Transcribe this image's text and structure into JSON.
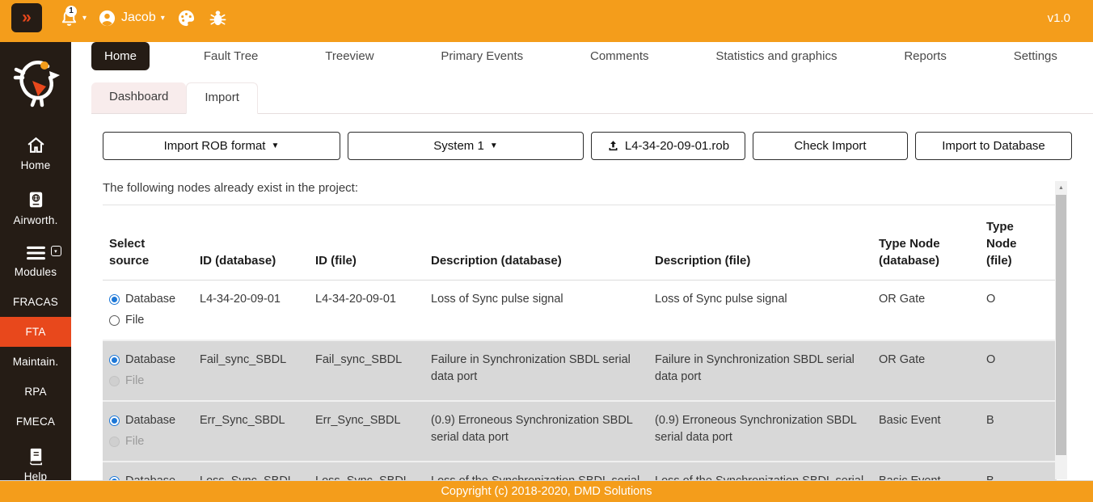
{
  "topbar": {
    "collapse_glyph": "»",
    "notification_count": "1",
    "user_name": "Jacob",
    "version": "v1.0"
  },
  "sidebar": {
    "items": [
      {
        "id": "home",
        "label": "Home",
        "icon": "home"
      },
      {
        "id": "airworthiness",
        "label": "Airworth.",
        "icon": "airworth"
      },
      {
        "id": "modules",
        "label": "Modules",
        "icon": "modules",
        "extra_icon": "dropdown"
      },
      {
        "id": "fracas",
        "label": "FRACAS"
      },
      {
        "id": "fta",
        "label": "FTA",
        "active": true
      },
      {
        "id": "maintain",
        "label": "Maintain."
      },
      {
        "id": "rpa",
        "label": "RPA"
      },
      {
        "id": "fmeca",
        "label": "FMECA"
      },
      {
        "id": "help",
        "label": "Help",
        "icon": "help"
      }
    ]
  },
  "main_tabs": [
    {
      "id": "home",
      "label": "Home",
      "active": true
    },
    {
      "id": "fault-tree",
      "label": "Fault Tree"
    },
    {
      "id": "treeview",
      "label": "Treeview"
    },
    {
      "id": "primary-events",
      "label": "Primary Events"
    },
    {
      "id": "comments",
      "label": "Comments"
    },
    {
      "id": "statistics-and-graphics",
      "label": "Statistics and graphics"
    },
    {
      "id": "reports",
      "label": "Reports"
    },
    {
      "id": "settings",
      "label": "Settings"
    }
  ],
  "sub_tabs": [
    {
      "id": "dashboard",
      "label": "Dashboard",
      "tinted": true
    },
    {
      "id": "import",
      "label": "Import",
      "active": true
    }
  ],
  "toolbar": {
    "import_format": "Import ROB format",
    "system": "System 1",
    "file_name": "L4-34-20-09-01.rob",
    "check_import": "Check Import",
    "import_to_database": "Import to Database"
  },
  "main": {
    "message": "The following nodes already exist in the project:"
  },
  "table": {
    "radio_options": [
      "Database",
      "File"
    ],
    "headers": [
      "Select source",
      "ID (database)",
      "ID (file)",
      "Description (database)",
      "Description (file)",
      "Type Node (database)",
      "Type Node (file)"
    ],
    "rows": [
      {
        "selected": "Database",
        "file_disabled": false,
        "shaded": false,
        "id_database": "L4-34-20-09-01",
        "id_file": "L4-34-20-09-01",
        "description_database": "Loss of Sync pulse signal",
        "description_file": "Loss of Sync pulse signal",
        "type_node_database": "OR Gate",
        "type_node_file": "O"
      },
      {
        "selected": "Database",
        "file_disabled": true,
        "shaded": true,
        "id_database": "Fail_sync_SBDL",
        "id_file": "Fail_sync_SBDL",
        "description_database": "Failure in Synchronization SBDL serial data port",
        "description_file": "Failure in Synchronization SBDL serial data port",
        "type_node_database": "OR Gate",
        "type_node_file": "O"
      },
      {
        "selected": "Database",
        "file_disabled": true,
        "shaded": true,
        "id_database": "Err_Sync_SBDL",
        "id_file": "Err_Sync_SBDL",
        "description_database": "(0.9) Erroneous Synchronization SBDL serial data port",
        "description_file": "(0.9) Erroneous Synchronization SBDL serial data port",
        "type_node_database": "Basic Event",
        "type_node_file": "B"
      },
      {
        "selected": "Database",
        "file_disabled": true,
        "shaded": true,
        "id_database": "Loss_Sync_SBDL",
        "id_file": "Loss_Sync_SBDL",
        "description_database": "Loss of the Synchronization SBDL serial data port",
        "description_file": "Loss of the Synchronization SBDL serial data port",
        "type_node_database": "Basic Event",
        "type_node_file": "B"
      }
    ]
  },
  "footer": {
    "copyright": "Copyright (c) 2018-2020, DMD Solutions"
  },
  "colors": {
    "brand_orange": "#F49D1B",
    "sidebar_dark": "#251C15",
    "active_red": "#E8481C",
    "row_gray": "#D8D8D8",
    "radio_blue": "#1E78D7"
  }
}
